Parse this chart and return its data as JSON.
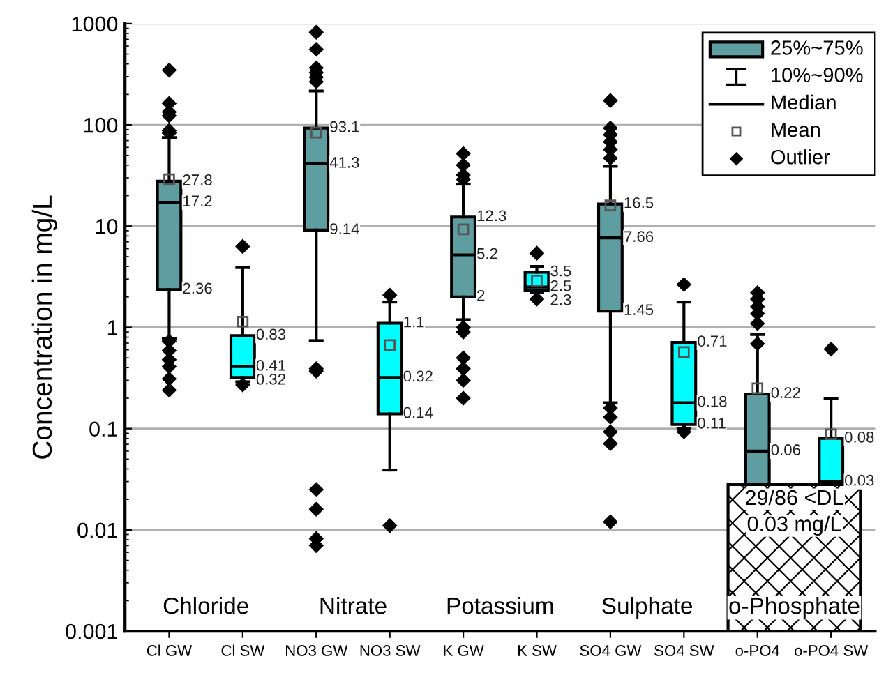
{
  "chart_data": {
    "type": "box",
    "ylabel": "Concentration in mg/L",
    "categories": [
      "Cl GW",
      "Cl SW",
      "NO3 GW",
      "NO3 SW",
      "K GW",
      "K SW",
      "SO4 GW",
      "SO4 SW",
      "o-PO4",
      "o-PO4 SW"
    ],
    "colors": [
      "#5f9ea0",
      "#00ffff",
      "#5f9ea0",
      "#00ffff",
      "#5f9ea0",
      "#00ffff",
      "#5f9ea0",
      "#00ffff",
      "#5f9ea0",
      "#00ffff"
    ],
    "boxes": [
      {
        "low": 0.78,
        "q1": 2.36,
        "median": 17.2,
        "q3": 27.8,
        "high": 75,
        "mean": 29,
        "outliers": [
          347,
          163,
          134,
          123,
          88,
          83,
          0.73,
          0.59,
          0.48,
          0.41,
          0.31,
          0.24
        ]
      },
      {
        "low": 0.29,
        "q1": 0.32,
        "median": 0.41,
        "q3": 0.83,
        "high": 3.9,
        "mean": 1.14,
        "outliers": [
          6.3,
          0.27
        ]
      },
      {
        "low": 0.74,
        "q1": 9.14,
        "median": 41.3,
        "q3": 93.1,
        "high": 216,
        "mean": 84,
        "outliers": [
          822,
          557,
          366,
          329,
          295,
          267,
          0.39,
          0.37,
          0.025,
          0.016,
          0.0082,
          0.007
        ]
      },
      {
        "low": 0.039,
        "q1": 0.14,
        "median": 0.32,
        "q3": 1.1,
        "high": 1.78,
        "mean": 0.67,
        "outliers": [
          2.08,
          0.011
        ]
      },
      {
        "low": 1.19,
        "q1": 2,
        "median": 5.2,
        "q3": 12.3,
        "high": 26,
        "mean": 9.3,
        "outliers": [
          52,
          40,
          32,
          29,
          1.0,
          0.9,
          0.5,
          0.39,
          0.3,
          0.2
        ]
      },
      {
        "low": 2.2,
        "q1": 2.3,
        "median": 2.5,
        "q3": 3.5,
        "high": 4.0,
        "mean": 2.9,
        "outliers": [
          5.4,
          1.9
        ]
      },
      {
        "low": 0.18,
        "q1": 1.45,
        "median": 7.66,
        "q3": 16.5,
        "high": 39,
        "mean": 16,
        "outliers": [
          174,
          93,
          80,
          68,
          57,
          47,
          0.16,
          0.13,
          0.093,
          0.071,
          0.012
        ]
      },
      {
        "low": 0.1,
        "q1": 0.11,
        "median": 0.18,
        "q3": 0.71,
        "high": 1.78,
        "mean": 0.57,
        "outliers": [
          2.65,
          0.093
        ]
      },
      {
        "low": 0.028,
        "q1": 0.028,
        "median": 0.06,
        "q3": 0.22,
        "high": 0.85,
        "mean": 0.25,
        "outliers": [
          2.2,
          1.9,
          1.6,
          1.37,
          1.09,
          0.69
        ]
      },
      {
        "low": 0.028,
        "q1": 0.028,
        "median": 0.03,
        "q3": 0.08,
        "high": 0.2,
        "mean": 0.088,
        "outliers": [
          0.61
        ]
      }
    ],
    "value_labels": [
      [
        "27.8",
        "17.2",
        "2.36"
      ],
      [
        "0.83",
        "0.41",
        "0.32"
      ],
      [
        "93.1",
        "41.3",
        "9.14"
      ],
      [
        "1.1",
        "0.32",
        "0.14"
      ],
      [
        "12.3",
        "5.2",
        "2"
      ],
      [
        "3.5",
        "2.5",
        "2.3"
      ],
      [
        "16.5",
        "7.66",
        "1.45"
      ],
      [
        "0.71",
        "0.18",
        "0.11"
      ],
      [
        "0.22",
        "0.06",
        null
      ],
      [
        "0.08",
        "0.03",
        null
      ]
    ],
    "annotations": [
      "Chloride",
      "Nitrate",
      "Potassium",
      "Sulphate",
      "o-Phosphate",
      "29/86 <DL",
      "0.03 mg/L",
      "25%~75%",
      "10%~90%",
      "Median",
      "Mean",
      "Outlier"
    ],
    "log": "y",
    "ylim": [
      0.001,
      1000
    ],
    "yticks": [
      0.001,
      0.01,
      0.1,
      1,
      10,
      100,
      1000
    ],
    "grid": "y"
  }
}
